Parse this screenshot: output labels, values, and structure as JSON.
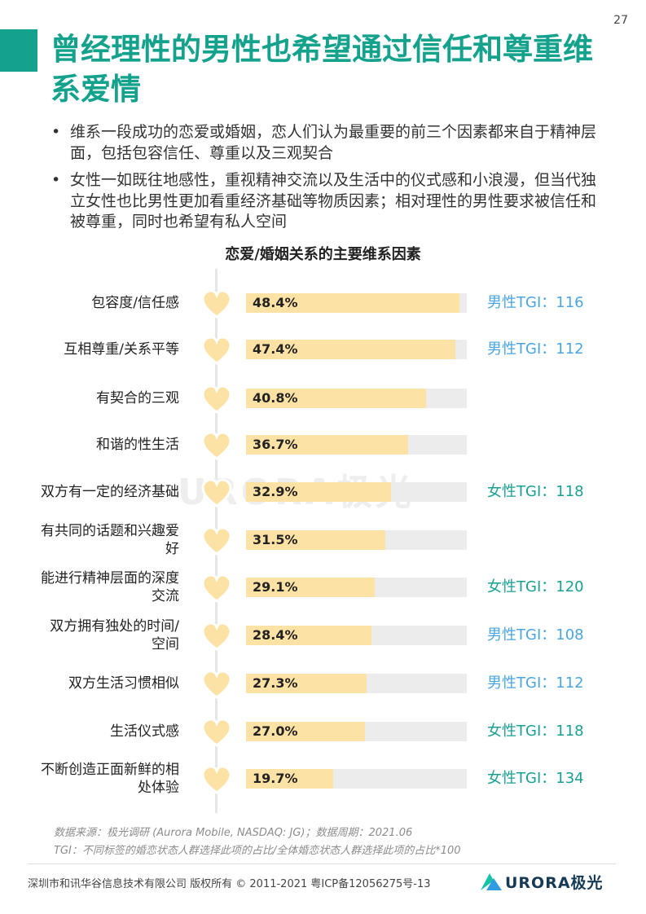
{
  "page_number": "27",
  "title": "曾经理性的男性也希望通过信任和尊重维系爱情",
  "bullets": [
    "维系一段成功的恋爱或婚姻，恋人们认为最重要的前三个因素都来自于精神层面，包括包容信任、尊重以及三观契合",
    "女性一如既往地感性，重视精神交流以及生活中的仪式感和小浪漫，但当代独立女性也比男性更加看重经济基础等物质因素；相对理性的男性要求被信任和被尊重，同时也希望有私人空间"
  ],
  "bullet_symbol": "•",
  "watermark": "URORA极光",
  "chart_data": {
    "type": "bar",
    "orientation": "horizontal",
    "title": "恋爱/婚姻关系的主要维系因素",
    "categories": [
      "包容度/信任感",
      "互相尊重/关系平等",
      "有契合的三观",
      "和谐的性生活",
      "双方有一定的经济基础",
      "有共同的话题和兴趣爱好",
      "能进行精神层面的深度交流",
      "双方拥有独处的时间/空间",
      "双方生活习惯相似",
      "生活仪式感",
      "不断创造正面新鲜的相处体验"
    ],
    "values": [
      48.4,
      47.4,
      40.8,
      36.7,
      32.9,
      31.5,
      29.1,
      28.4,
      27.3,
      27.0,
      19.7
    ],
    "xlim": [
      0,
      50
    ],
    "bar_color": "#fde2a5",
    "track_color": "#ececec",
    "rows": [
      {
        "label": "包容度/信任感",
        "value": 48.4,
        "value_label": "48.4%",
        "tgi": "男性TGI：116",
        "tgi_group": "male"
      },
      {
        "label": "互相尊重/关系平等",
        "value": 47.4,
        "value_label": "47.4%",
        "tgi": "男性TGI：112",
        "tgi_group": "male"
      },
      {
        "label": "有契合的三观",
        "value": 40.8,
        "value_label": "40.8%",
        "tgi": "",
        "tgi_group": ""
      },
      {
        "label": "和谐的性生活",
        "value": 36.7,
        "value_label": "36.7%",
        "tgi": "",
        "tgi_group": ""
      },
      {
        "label": "双方有一定的经济基础",
        "value": 32.9,
        "value_label": "32.9%",
        "tgi": "女性TGI：118",
        "tgi_group": "female"
      },
      {
        "label": "有共同的话题和兴趣爱好",
        "value": 31.5,
        "value_label": "31.5%",
        "tgi": "",
        "tgi_group": ""
      },
      {
        "label": "能进行精神层面的深度交流",
        "value": 29.1,
        "value_label": "29.1%",
        "tgi": "女性TGI：120",
        "tgi_group": "female"
      },
      {
        "label": "双方拥有独处的时间/空间",
        "value": 28.4,
        "value_label": "28.4%",
        "tgi": "男性TGI：108",
        "tgi_group": "male"
      },
      {
        "label": "双方生活习惯相似",
        "value": 27.3,
        "value_label": "27.3%",
        "tgi": "男性TGI：112",
        "tgi_group": "male"
      },
      {
        "label": "生活仪式感",
        "value": 27.0,
        "value_label": "27.0%",
        "tgi": "女性TGI：118",
        "tgi_group": "female"
      },
      {
        "label": "不断创造正面新鲜的相处体验",
        "value": 19.7,
        "value_label": "19.7%",
        "tgi": "女性TGI：134",
        "tgi_group": "female"
      }
    ]
  },
  "notes": {
    "source": "数据来源：极光调研 (Aurora Mobile, NASDAQ: JG)；数据周期：2021.06",
    "tgi_def": "TGI：不同标签的婚恋状态人群选择此项的占比/全体婚恋状态人群选择此项的占比*100"
  },
  "footer": {
    "copyright": "深圳市和讯华谷信息技术有限公司 版权所有 © 2011-2021 粤ICP备12056275号-13",
    "logo_text": "URORA极光"
  },
  "colors": {
    "accent": "#14a28c",
    "male_tgi": "#4aa5e0",
    "female_tgi": "#1aa092",
    "heart_fill": "#fde2a5",
    "heart_stroke": "#ffffff"
  },
  "icons": {
    "heart": "heart-icon",
    "logo": "aurora-logo-icon"
  }
}
